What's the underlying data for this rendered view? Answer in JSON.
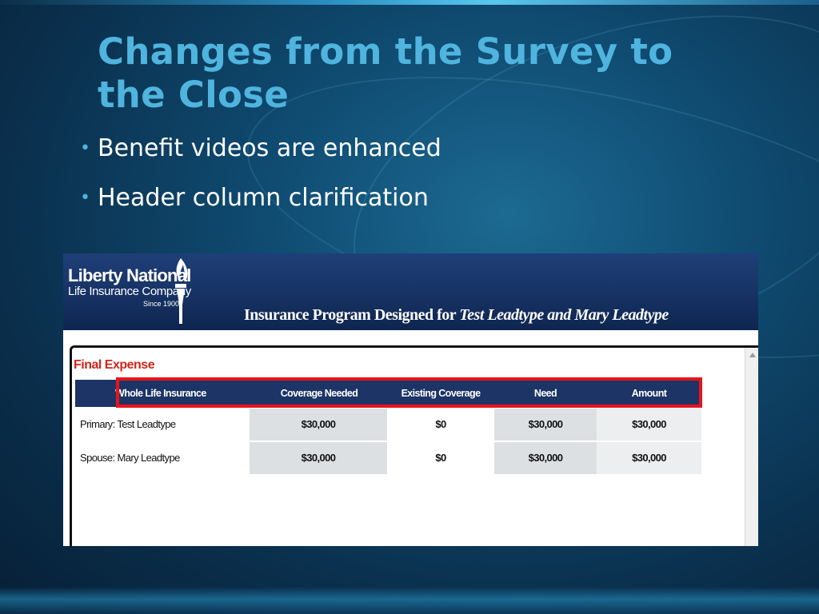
{
  "slide": {
    "title": "Changes from the Survey to the Close",
    "bullets": [
      "Benefit videos are enhanced",
      "Header column clarification"
    ],
    "colors": {
      "title": "#4fb4de",
      "background": "#0f4a70",
      "highlight_box": "#e8141c"
    }
  },
  "screenshot": {
    "logo": {
      "name": "Liberty National",
      "subtitle": "Life Insurance Company",
      "since": "Since 1900",
      "icon": "torch-icon"
    },
    "program_title_prefix": "Insurance Program Designed for ",
    "program_title_names": "Test Leadtype and Mary Leadtype",
    "section_title": "Final Expense",
    "table": {
      "headers": [
        "Whole Life Insurance",
        "Coverage Needed",
        "Existing Coverage",
        "Need",
        "Amount"
      ],
      "rows": [
        [
          "Primary: Test Leadtype",
          "$30,000",
          "$0",
          "$30,000",
          "$30,000"
        ],
        [
          "Spouse: Mary Leadtype",
          "$30,000",
          "$0",
          "$30,000",
          "$30,000"
        ]
      ]
    }
  }
}
